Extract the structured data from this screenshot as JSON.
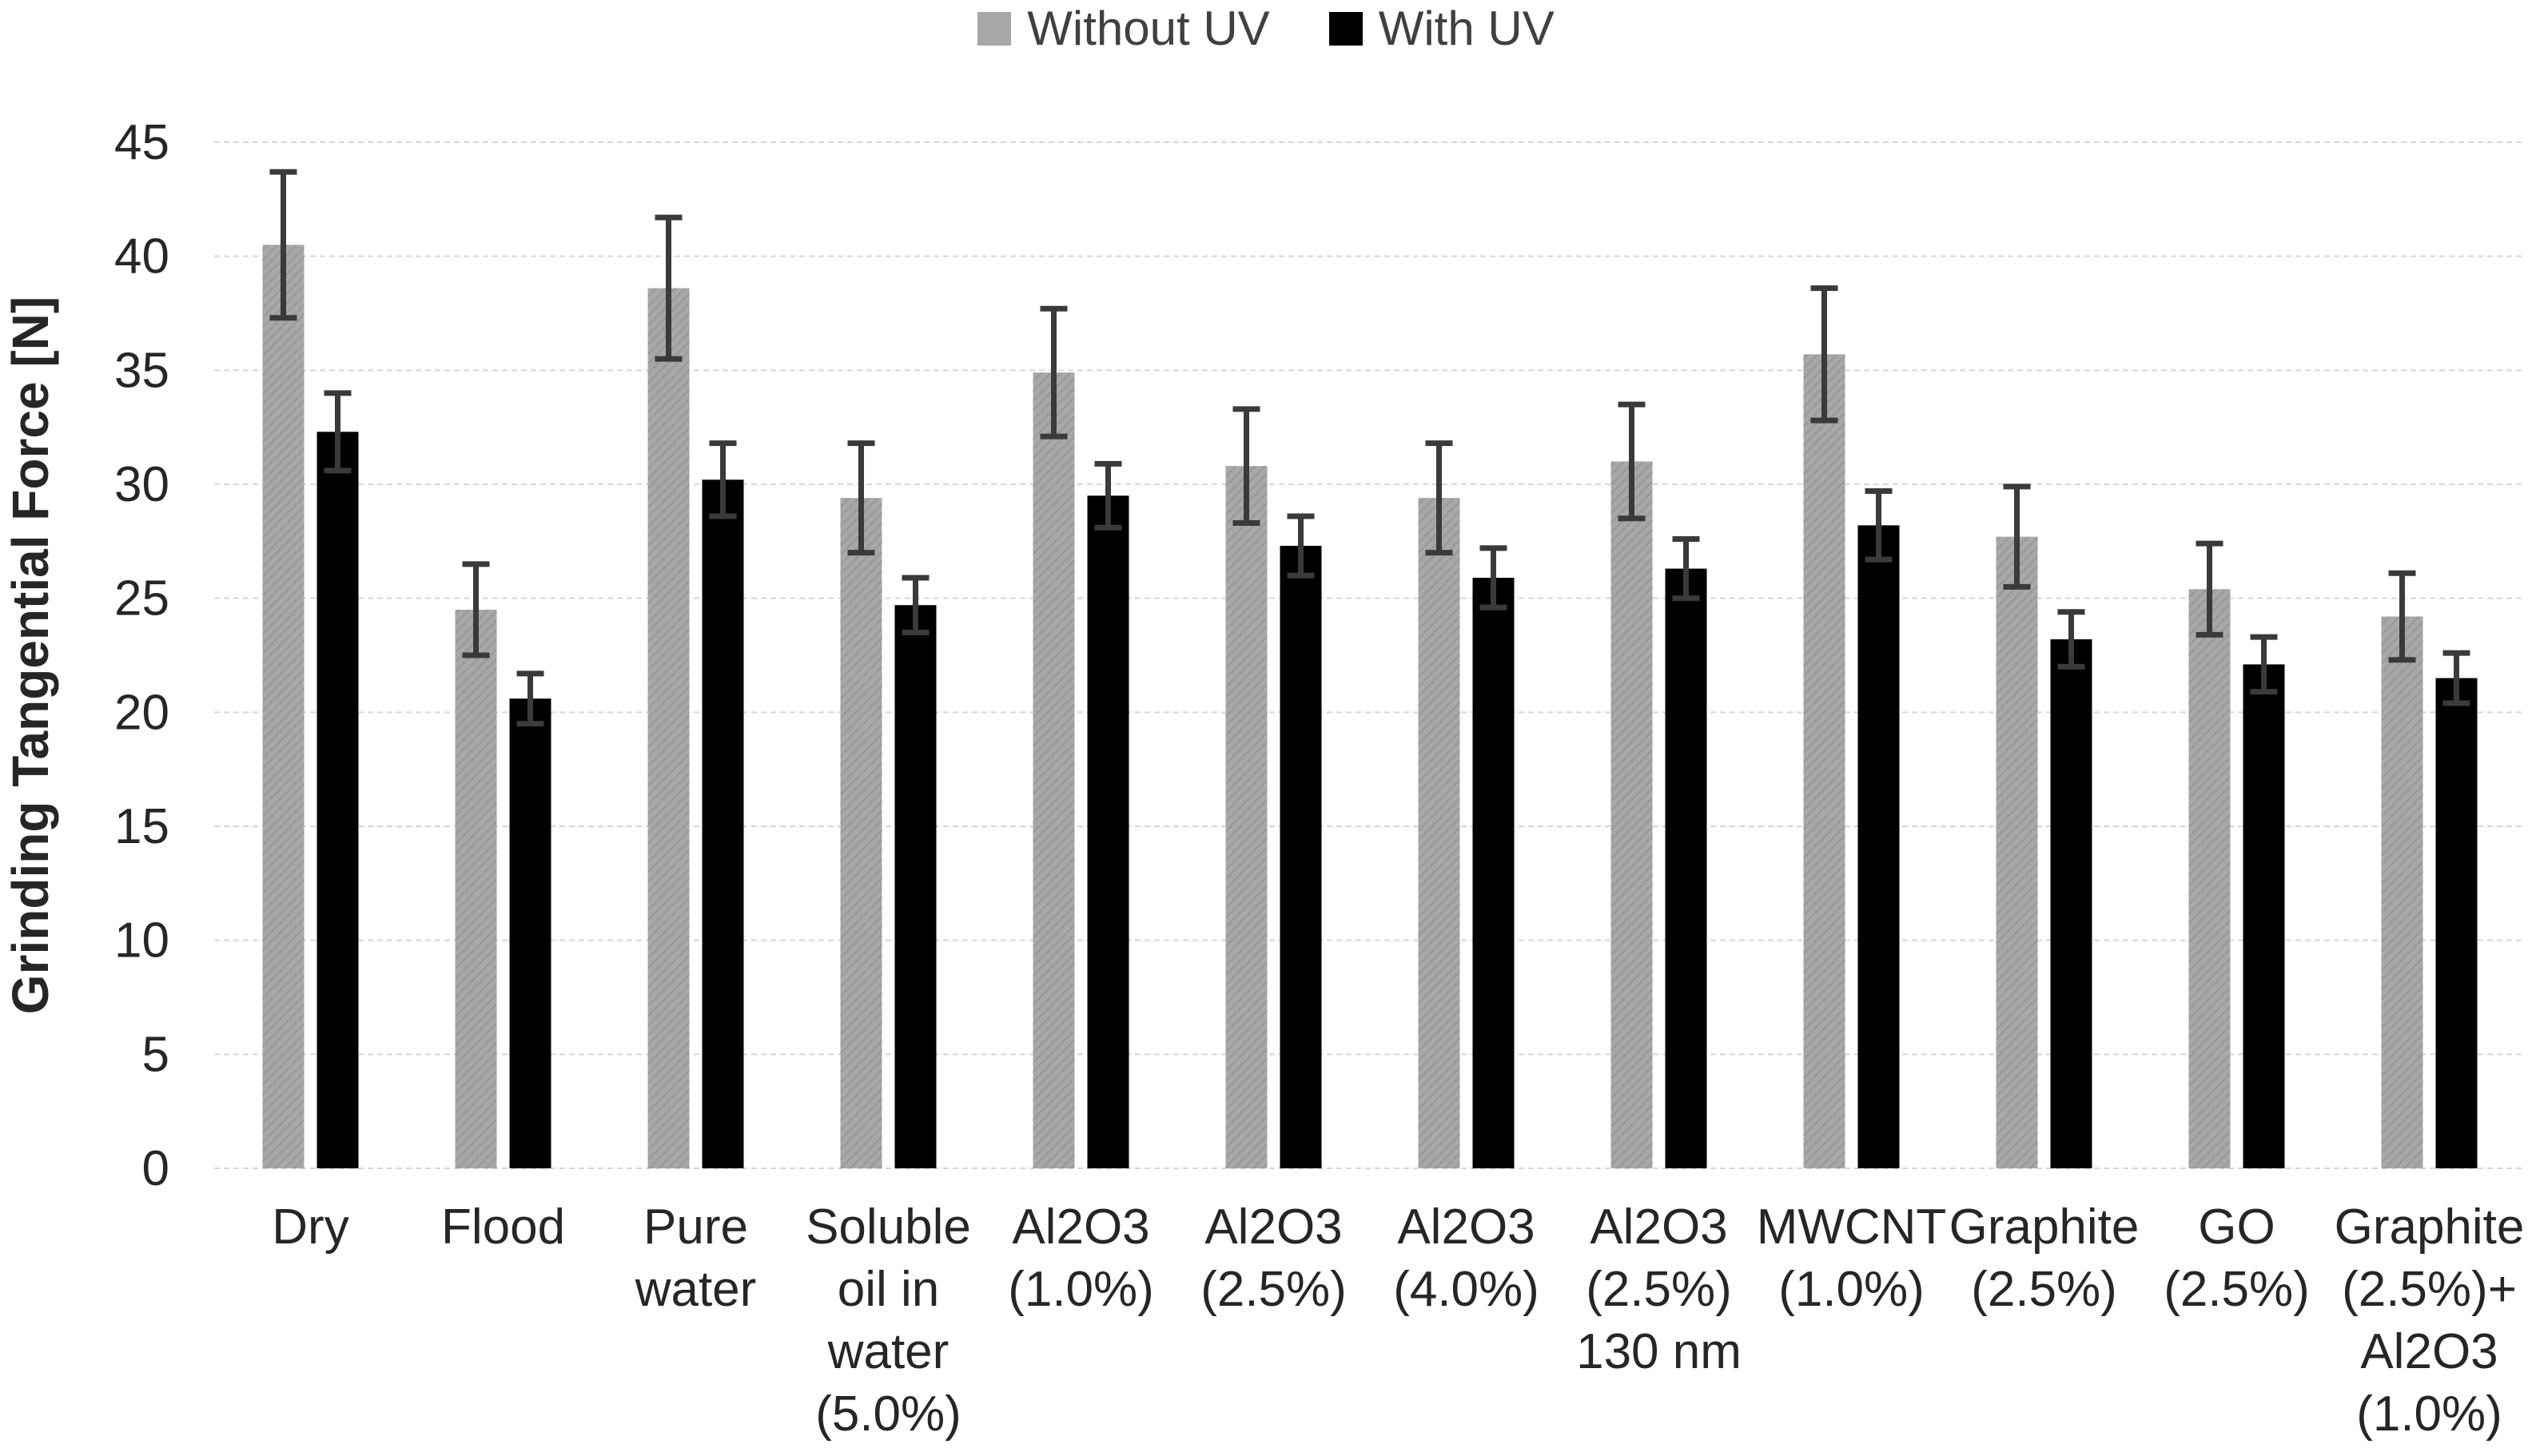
{
  "figure": {
    "background": "#ffffff"
  },
  "legend": {
    "items": [
      {
        "label": "Without UV",
        "color": "#a8a8a8"
      },
      {
        "label": "With UV",
        "color": "#000000"
      }
    ]
  },
  "colors": {
    "bar_without_uv": "#a8a8a8",
    "bar_without_uv_texture": "#999999",
    "bar_with_uv": "#000000",
    "error_bar": "#3a3a3a",
    "gridline": "#d6d6d6",
    "tick_text": "#262626",
    "axis_title_text": "#262626",
    "category_text": "#262626"
  },
  "chart_data": {
    "type": "bar",
    "title": "",
    "xlabel": "",
    "ylabel": "Grinding Tangential Force [N]",
    "ylim": [
      0,
      45
    ],
    "yticks": [
      0,
      5,
      10,
      15,
      20,
      25,
      30,
      35,
      40,
      45
    ],
    "grid": true,
    "legend_position": "top-center",
    "categories": [
      "Dry",
      "Flood",
      "Pure water",
      "Soluble oil in water (5.0%)",
      "Al2O3 (1.0%)",
      "Al2O3 (2.5%)",
      "Al2O3 (4.0%)",
      "Al2O3 (2.5%) 130 nm",
      "MWCNT (1.0%)",
      "Graphite (2.5%)",
      "GO (2.5%)",
      "Graphite (2.5%)+ Al2O3 (1.0%)"
    ],
    "category_label_lines": [
      [
        "Dry"
      ],
      [
        "Flood"
      ],
      [
        "Pure",
        "water"
      ],
      [
        "Soluble",
        "oil in",
        "water",
        "(5.0%)"
      ],
      [
        "Al2O3",
        "(1.0%)"
      ],
      [
        "Al2O3",
        "(2.5%)"
      ],
      [
        "Al2O3",
        "(4.0%)"
      ],
      [
        "Al2O3",
        "(2.5%)",
        "130 nm"
      ],
      [
        "MWCNT",
        "(1.0%)"
      ],
      [
        "Graphite",
        "(2.5%)"
      ],
      [
        "GO",
        "(2.5%)"
      ],
      [
        "Graphite",
        "(2.5%)+",
        "Al2O3",
        "(1.0%)"
      ]
    ],
    "series": [
      {
        "name": "Without UV",
        "color": "#a8a8a8",
        "values": [
          40.5,
          24.5,
          38.6,
          29.4,
          34.9,
          30.8,
          29.4,
          31.0,
          35.7,
          27.7,
          25.4,
          24.2
        ],
        "errors": [
          3.2,
          2.0,
          3.1,
          2.4,
          2.8,
          2.5,
          2.4,
          2.5,
          2.9,
          2.2,
          2.0,
          1.9
        ]
      },
      {
        "name": "With UV",
        "color": "#000000",
        "values": [
          32.3,
          20.6,
          30.2,
          24.7,
          29.5,
          27.3,
          25.9,
          26.3,
          28.2,
          23.2,
          22.1,
          21.5
        ],
        "errors": [
          1.7,
          1.1,
          1.6,
          1.2,
          1.4,
          1.3,
          1.3,
          1.3,
          1.5,
          1.2,
          1.2,
          1.1
        ]
      }
    ]
  }
}
